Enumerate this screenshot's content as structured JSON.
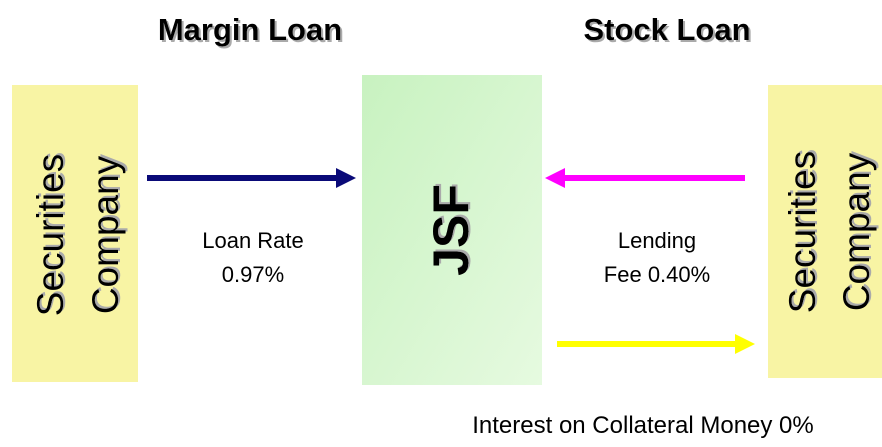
{
  "titles": [
    "Margin Loan",
    "Stock Loan"
  ],
  "nodes": [
    {
      "lines": [
        "Securities",
        "Company"
      ]
    },
    {
      "lines": [
        "JSF"
      ]
    },
    {
      "lines": [
        "Securities",
        "Company"
      ]
    }
  ],
  "edges": [
    {
      "lines": [
        "Loan Rate",
        "0.97%"
      ]
    },
    {
      "lines": [
        "Lending",
        "Fee 0.40%"
      ]
    },
    {
      "lines": [
        "Interest on Collateral Money 0%"
      ]
    }
  ]
}
